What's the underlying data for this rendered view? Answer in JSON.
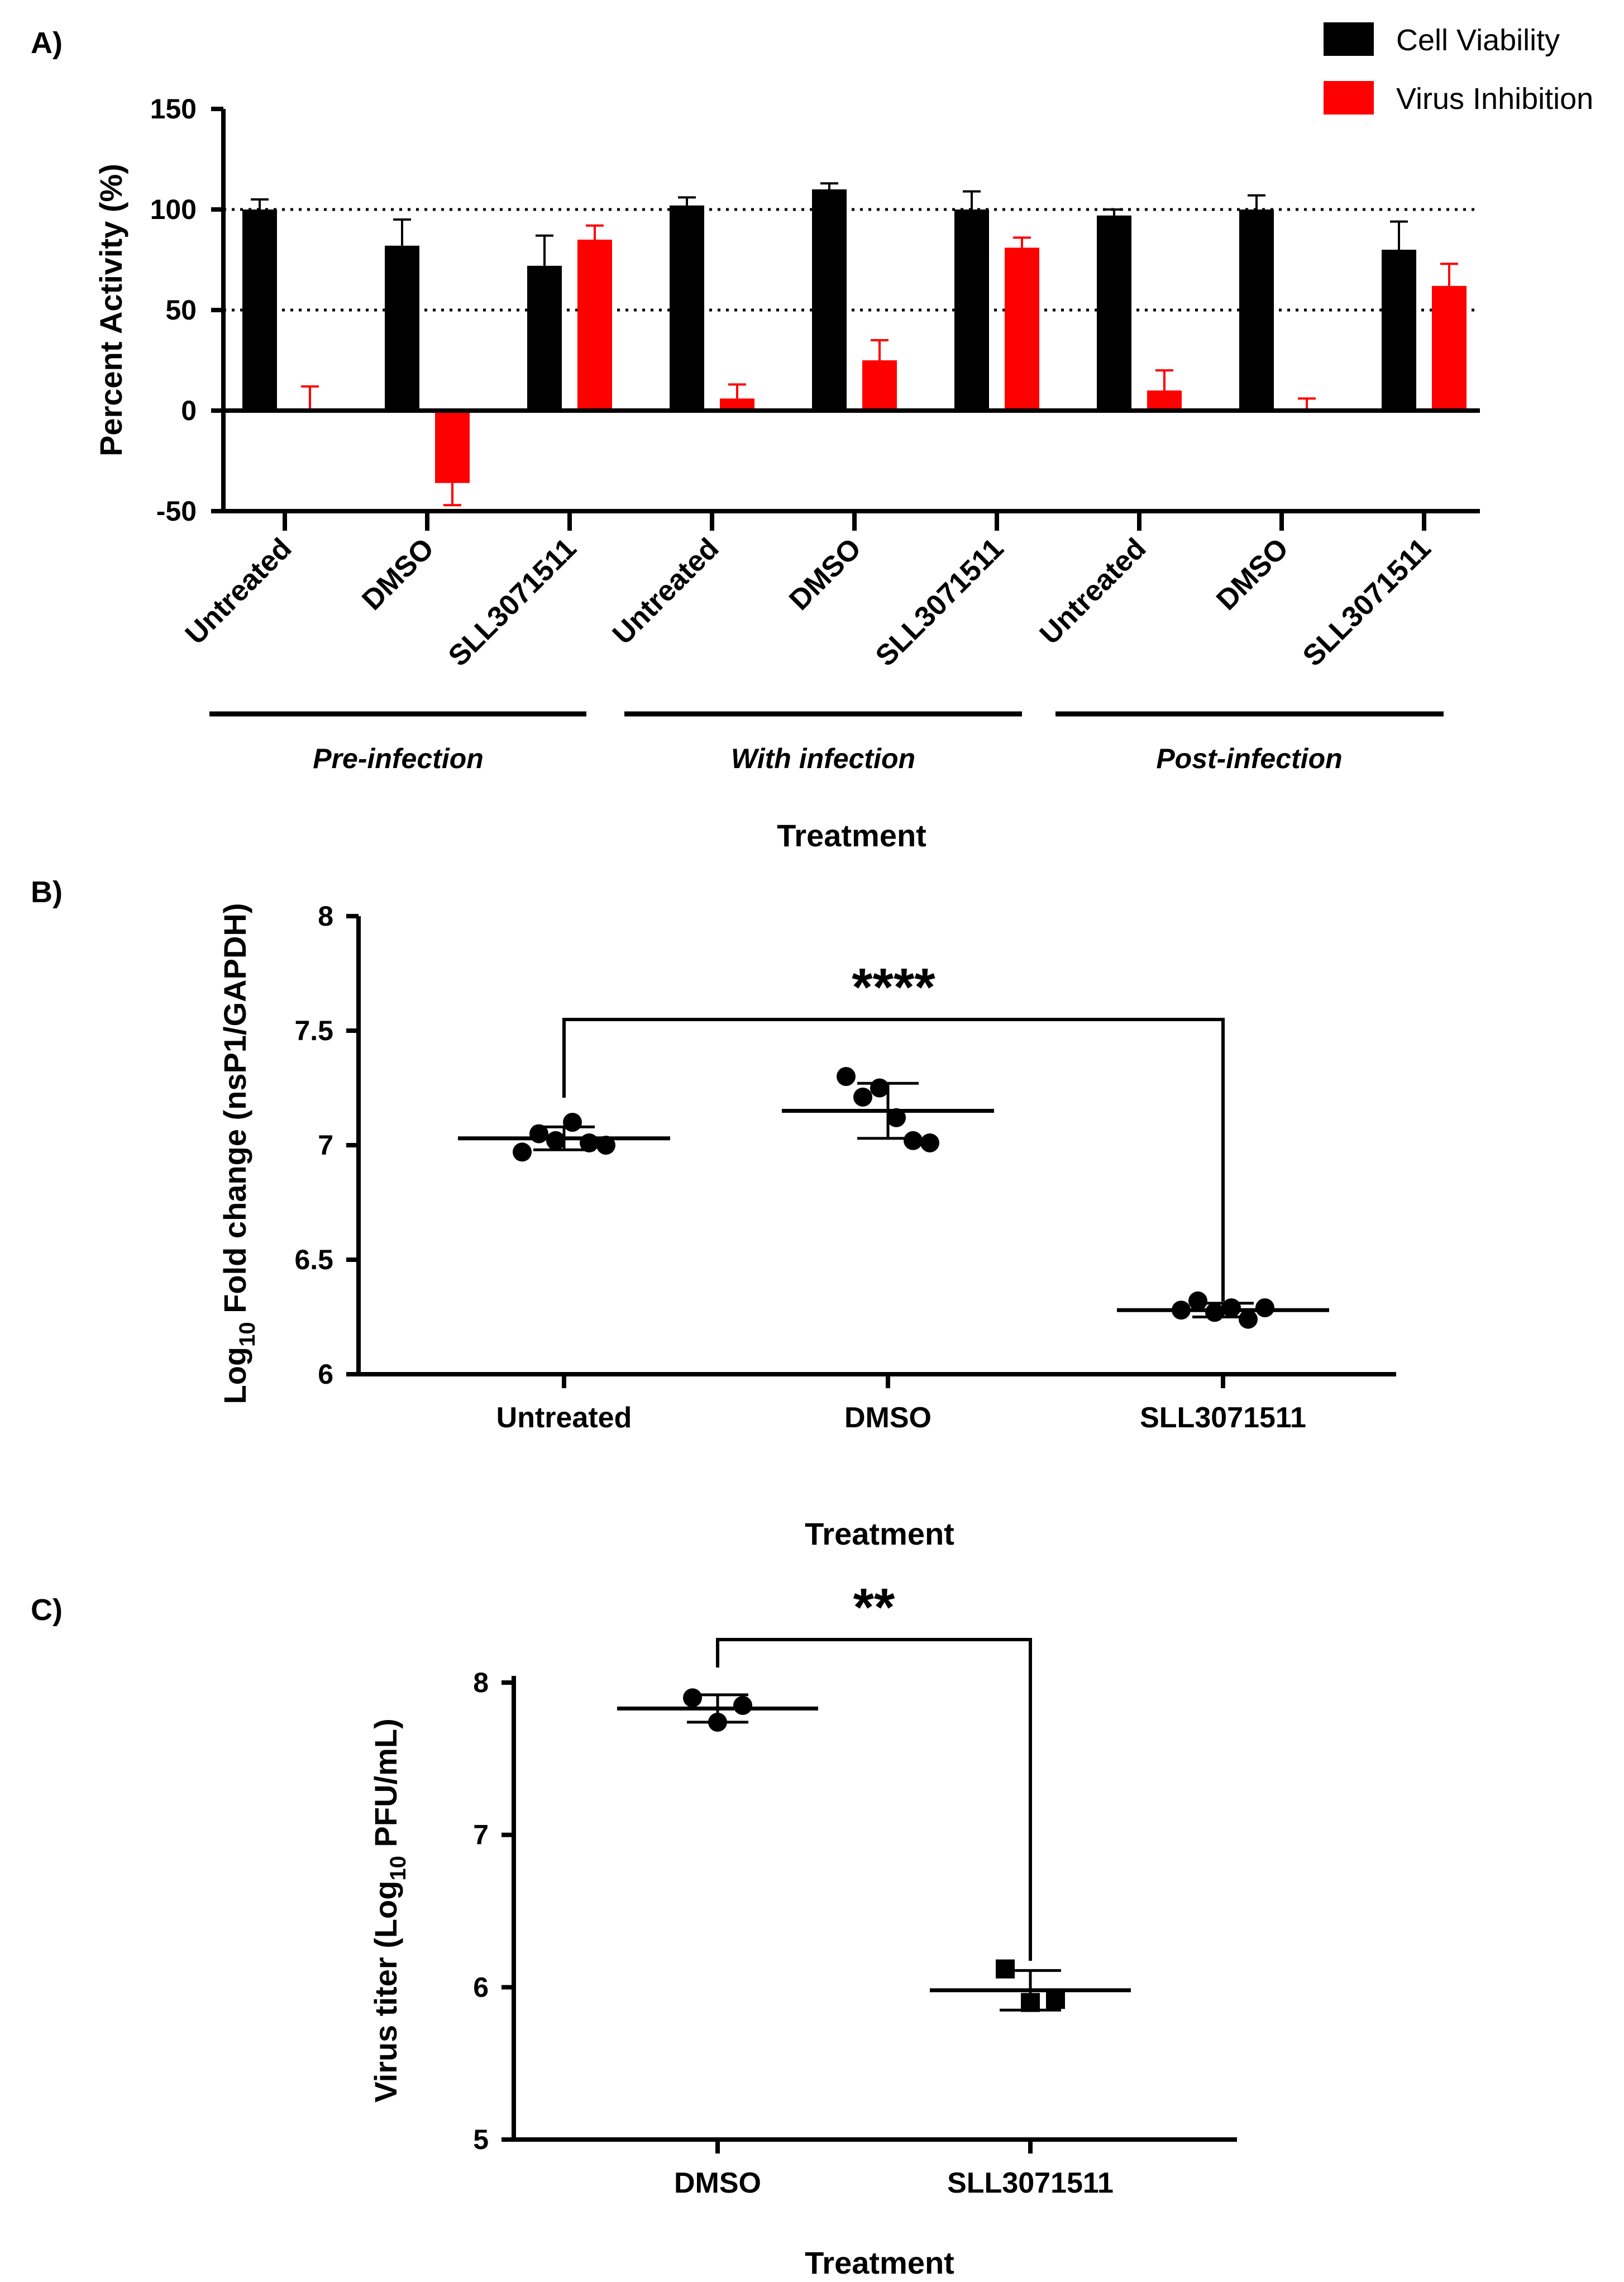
{
  "chart_data": [
    {
      "panel": "A)",
      "type": "bar",
      "ylabel": "Percent Activity (%)",
      "xlabel": "Treatment",
      "ylim": [
        -50,
        150
      ],
      "yticks": [
        "-50",
        "0",
        "50",
        "100",
        "150"
      ],
      "reference_lines": [
        50,
        100
      ],
      "categories": [
        "Untreated",
        "DMSO",
        "SLL3071511",
        "Untreated",
        "DMSO",
        "SLL3071511",
        "Untreated",
        "DMSO",
        "SLL3071511"
      ],
      "groups": [
        "Pre-infection",
        "With infection",
        "Post-infection"
      ],
      "series": [
        {
          "name": "Cell Viability",
          "color": "#000000",
          "values": [
            100,
            82,
            72,
            102,
            110,
            100,
            97,
            100,
            80
          ],
          "errors": [
            5,
            13,
            15,
            4,
            3,
            9,
            3,
            7,
            14
          ]
        },
        {
          "name": "Virus Inhibition",
          "color": "#ff0000",
          "values": [
            0,
            -36,
            85,
            6,
            25,
            81,
            10,
            0,
            62
          ],
          "errors": [
            12,
            11,
            7,
            7,
            10,
            5,
            10,
            6,
            11
          ]
        }
      ]
    },
    {
      "panel": "B)",
      "type": "scatter",
      "ylabel_prefix": "Log",
      "ylabel_sub": "10",
      "ylabel_suffix": " Fold change (nsP1/GAPDH)",
      "xlabel": "Treatment",
      "ylim": [
        6,
        8
      ],
      "yticks": [
        "6",
        "6.5",
        "7",
        "7.5",
        "8"
      ],
      "categories": [
        "Untreated",
        "DMSO",
        "SLL3071511"
      ],
      "points": [
        [
          6.97,
          7.05,
          7.02,
          7.1,
          7.01,
          7.0
        ],
        [
          7.3,
          7.21,
          7.25,
          7.12,
          7.02,
          7.01
        ],
        [
          6.28,
          6.32,
          6.27,
          6.29,
          6.24,
          6.29
        ]
      ],
      "means": [
        7.03,
        7.15,
        6.28
      ],
      "sd": [
        0.05,
        0.12,
        0.03
      ],
      "significance": {
        "between": [
          "Untreated",
          "SLL3071511"
        ],
        "label": "****"
      }
    },
    {
      "panel": "C)",
      "type": "scatter",
      "ylabel_prefix": "Virus titer (Log",
      "ylabel_sub": "10",
      "ylabel_suffix": " PFU/mL)",
      "xlabel": "Treatment",
      "ylim": [
        5,
        8
      ],
      "yticks": [
        "5",
        "6",
        "7",
        "8"
      ],
      "categories": [
        "DMSO",
        "SLL3071511"
      ],
      "points": [
        [
          7.9,
          7.74,
          7.85
        ],
        [
          6.12,
          5.9,
          5.92
        ]
      ],
      "markers": [
        "circle",
        "square"
      ],
      "means": [
        7.83,
        5.98
      ],
      "sd": [
        0.09,
        0.13
      ],
      "significance": {
        "between": [
          "DMSO",
          "SLL3071511"
        ],
        "label": "**"
      }
    }
  ]
}
